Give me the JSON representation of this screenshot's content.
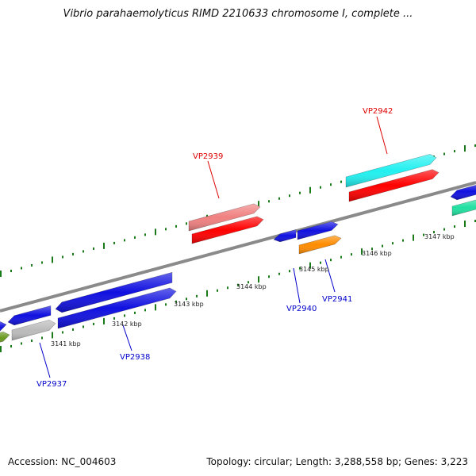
{
  "title": "Vibrio parahaemolyticus RIMD 2210633 chromosome I, complete ...",
  "footer": {
    "accession": "Accession: NC_004603",
    "summary": "Topology: circular; Length: 3,288,558 bp; Genes: 3,223"
  },
  "colors": {
    "backbone": "#8a8a8a",
    "tick": "#1a7a1a",
    "label_red": "#dd0000",
    "label_blue": "#0000cc",
    "blue_gene": "#1010e0",
    "red_gene": "#ff0000",
    "pink_gene": "#f08080",
    "cyan_gene": "#22f0f0",
    "orange_gene": "#ff8c00",
    "gray_gene": "#bbbbbb",
    "green_gene": "#6a9a20",
    "teal_gene": "#20e0a0"
  },
  "scale_labels": [
    "3141 kbp",
    "3142 kbp",
    "3143 kbp",
    "3144 kbp",
    "3145 kbp",
    "3146 kbp",
    "3147 kbp"
  ],
  "gene_labels": [
    {
      "text": "VP2937",
      "color": "blue"
    },
    {
      "text": "VP2938",
      "color": "blue"
    },
    {
      "text": "VP2939",
      "color": "red"
    },
    {
      "text": "VP2940",
      "color": "blue"
    },
    {
      "text": "VP2941",
      "color": "blue"
    },
    {
      "text": "VP2942",
      "color": "red"
    }
  ]
}
